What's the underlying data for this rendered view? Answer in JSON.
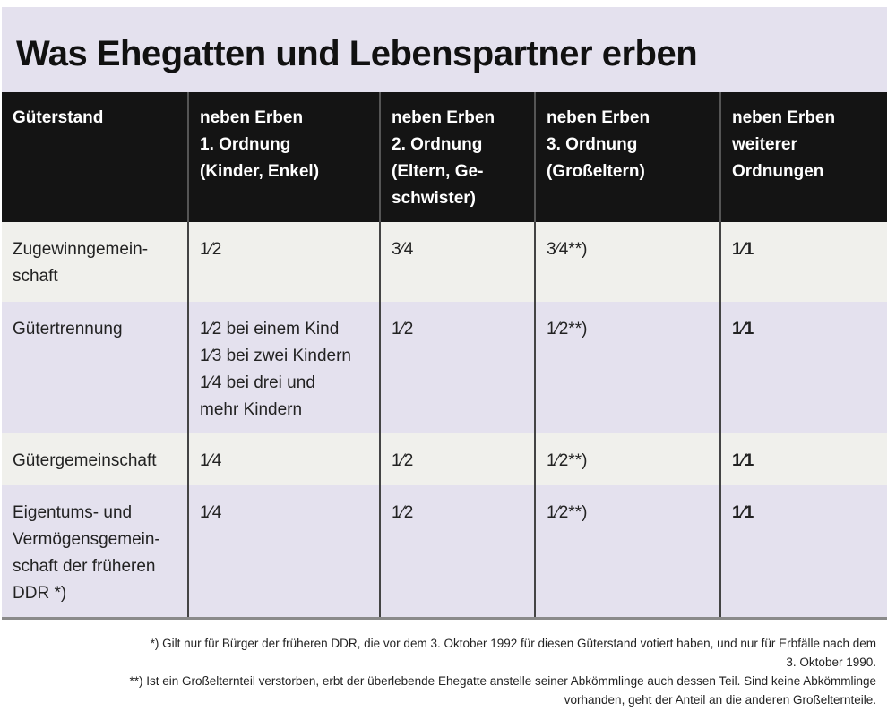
{
  "title": "Was Ehegatten und Lebenspartner erben",
  "table": {
    "header": [
      "Güterstand",
      "neben Erben\n1. Ordnung\n(Kinder, Enkel)",
      "neben Erben\n2. Ordnung\n(Eltern, Ge-\nschwister)",
      "neben Erben\n3. Ordnung\n(Großeltern)",
      "neben Erben\nweiterer\nOrdnungen"
    ],
    "rows": [
      [
        "Zugewinngemein-\nschaft",
        "1⁄2",
        "3⁄4",
        "3⁄4**)",
        "1⁄1"
      ],
      [
        "Gütertrennung",
        "1⁄2 bei einem Kind\n1⁄3 bei zwei Kindern\n1⁄4 bei drei und\nmehr Kindern",
        "1⁄2",
        "1⁄2**)",
        "1⁄1"
      ],
      [
        "Gütergemeinschaft",
        "1⁄4",
        "1⁄2",
        "1⁄2**)",
        "1⁄1"
      ],
      [
        "Eigentums- und\nVermögensgemein-\nschaft der früheren\nDDR *)",
        "1⁄4",
        "1⁄2",
        "1⁄2**)",
        "1⁄1"
      ]
    ]
  },
  "footnotes": [
    "*) Gilt nur für Bürger der früheren DDR, die vor dem 3. Oktober 1992 für diesen Güterstand votiert haben, und nur für Erbfälle nach dem\n3. Oktober 1990.",
    "**) Ist ein Großelternteil verstorben, erbt der überlebende Ehegatte anstelle seiner Abkömmlinge auch dessen Teil. Sind keine Abkömmlinge\nvorhanden, geht der Anteil an die anderen Großelternteile."
  ]
}
